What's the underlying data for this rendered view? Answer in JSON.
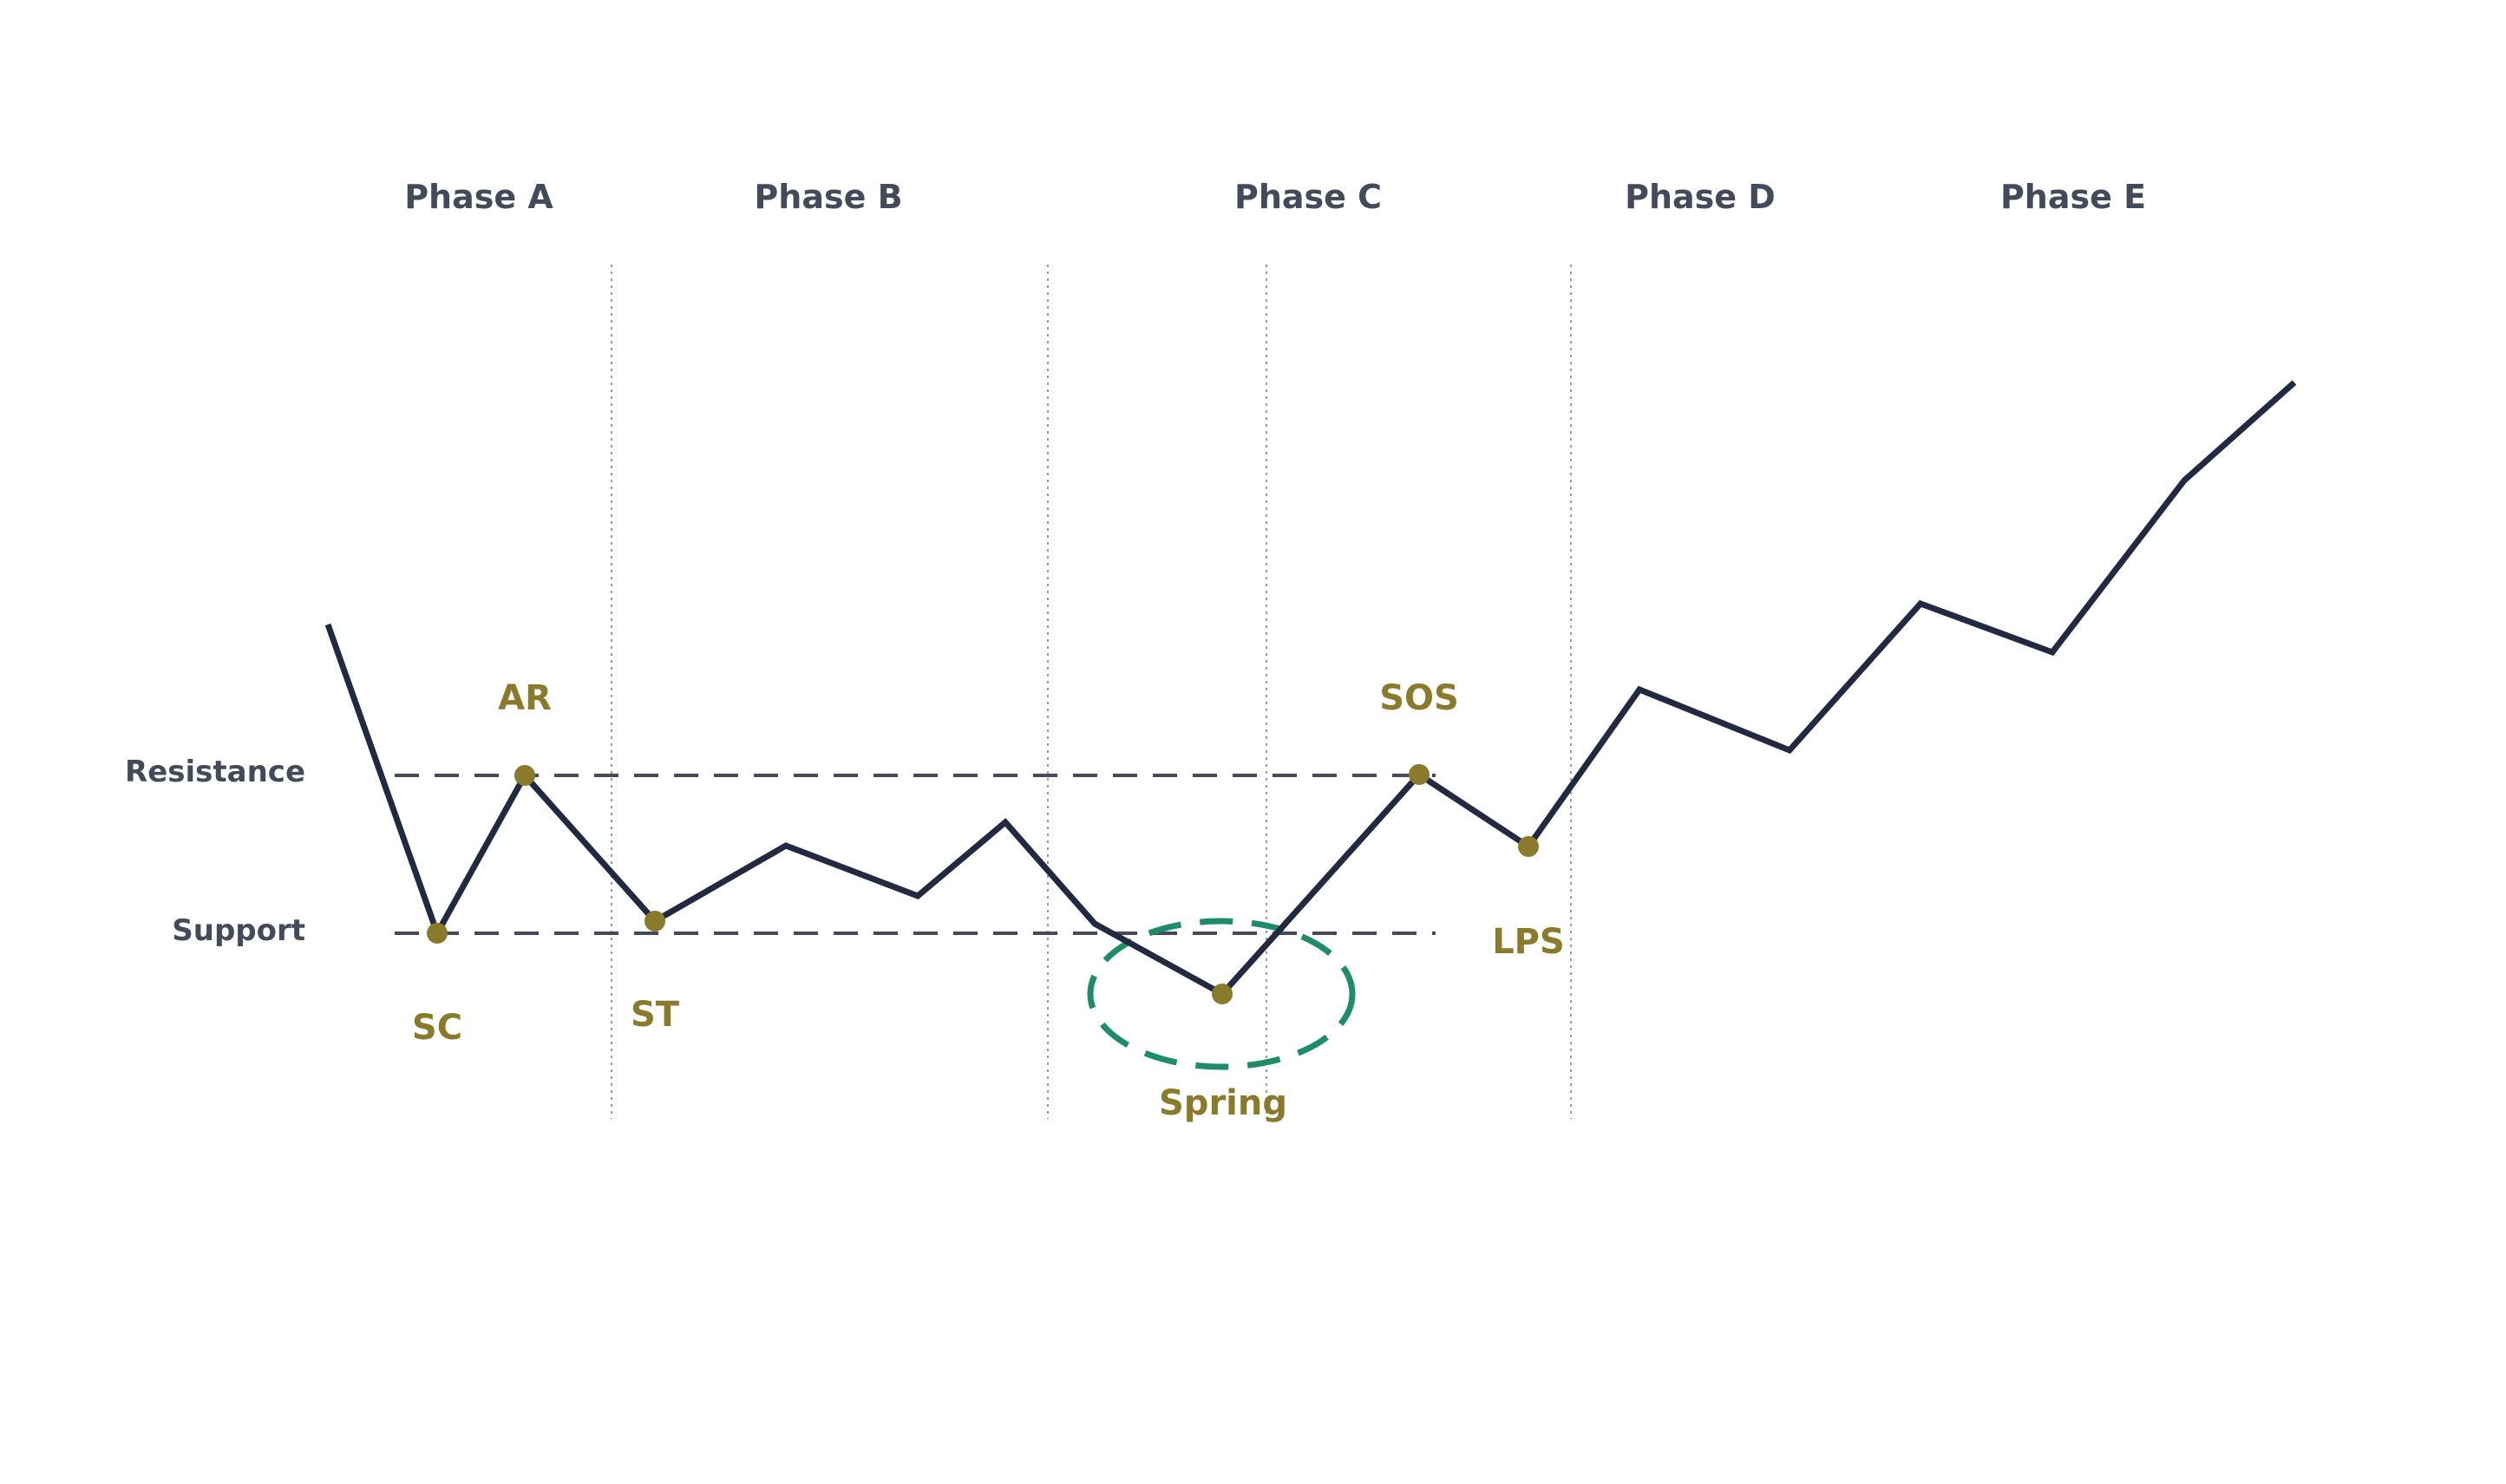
{
  "phases": [
    {
      "label": "Phase A"
    },
    {
      "label": "Phase B"
    },
    {
      "label": "Phase C"
    },
    {
      "label": "Phase D"
    },
    {
      "label": "Phase E"
    }
  ],
  "levels": {
    "resistance": "Resistance",
    "support": "Support"
  },
  "events": [
    {
      "id": "sc",
      "label": "SC"
    },
    {
      "id": "ar",
      "label": "AR"
    },
    {
      "id": "st",
      "label": "ST"
    },
    {
      "id": "spring",
      "label": "Spring"
    },
    {
      "id": "sos",
      "label": "SOS"
    },
    {
      "id": "lps",
      "label": "LPS"
    }
  ],
  "colors": {
    "price_line": "#222a42",
    "event_marker": "#8a7a2c",
    "event_text": "#8a7a2c",
    "phase_text": "#434b5a",
    "level_line": "#434b5a",
    "divider": "#9a9a9a",
    "spring_ellipse": "#1e8c6a"
  }
}
